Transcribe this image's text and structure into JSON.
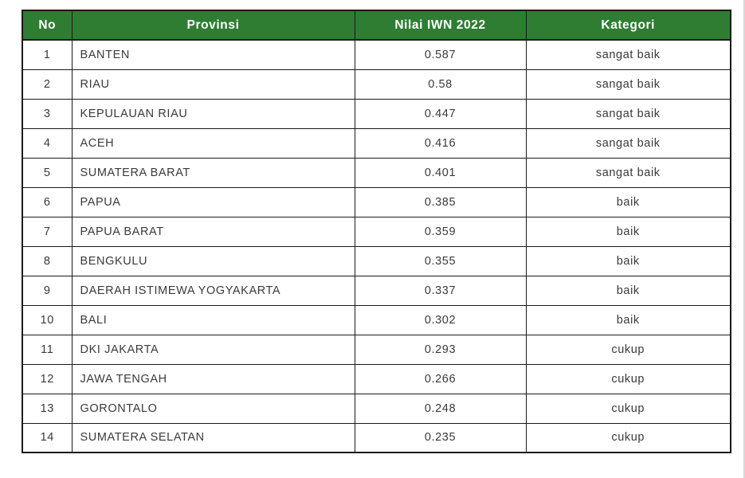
{
  "table": {
    "headers": {
      "no": "No",
      "provinsi": "Provinsi",
      "nilai": "Nilai IWN 2022",
      "kategori": "Kategori"
    },
    "rows": [
      {
        "no": "1",
        "provinsi": "BANTEN",
        "nilai": "0.587",
        "kategori": "sangat baik"
      },
      {
        "no": "2",
        "provinsi": "RIAU",
        "nilai": "0.58",
        "kategori": "sangat baik"
      },
      {
        "no": "3",
        "provinsi": "KEPULAUAN RIAU",
        "nilai": "0.447",
        "kategori": "sangat baik"
      },
      {
        "no": "4",
        "provinsi": "ACEH",
        "nilai": "0.416",
        "kategori": "sangat baik"
      },
      {
        "no": "5",
        "provinsi": "SUMATERA BARAT",
        "nilai": "0.401",
        "kategori": "sangat baik"
      },
      {
        "no": "6",
        "provinsi": "PAPUA",
        "nilai": "0.385",
        "kategori": "baik"
      },
      {
        "no": "7",
        "provinsi": "PAPUA BARAT",
        "nilai": "0.359",
        "kategori": "baik"
      },
      {
        "no": "8",
        "provinsi": "BENGKULU",
        "nilai": "0.355",
        "kategori": "baik"
      },
      {
        "no": "9",
        "provinsi": "DAERAH ISTIMEWA YOGYAKARTA",
        "nilai": "0.337",
        "kategori": "baik"
      },
      {
        "no": "10",
        "provinsi": "BALI",
        "nilai": "0.302",
        "kategori": "baik"
      },
      {
        "no": "11",
        "provinsi": "DKI JAKARTA",
        "nilai": "0.293",
        "kategori": "cukup"
      },
      {
        "no": "12",
        "provinsi": "JAWA TENGAH",
        "nilai": "0.266",
        "kategori": "cukup"
      },
      {
        "no": "13",
        "provinsi": "GORONTALO",
        "nilai": "0.248",
        "kategori": "cukup"
      },
      {
        "no": "14",
        "provinsi": "SUMATERA SELATAN",
        "nilai": "0.235",
        "kategori": "cukup"
      }
    ],
    "colors": {
      "header_bg": "#2e7d32",
      "header_text": "#ffffff",
      "border": "#1a1a1a",
      "body_text": "#3a3a3a"
    }
  }
}
